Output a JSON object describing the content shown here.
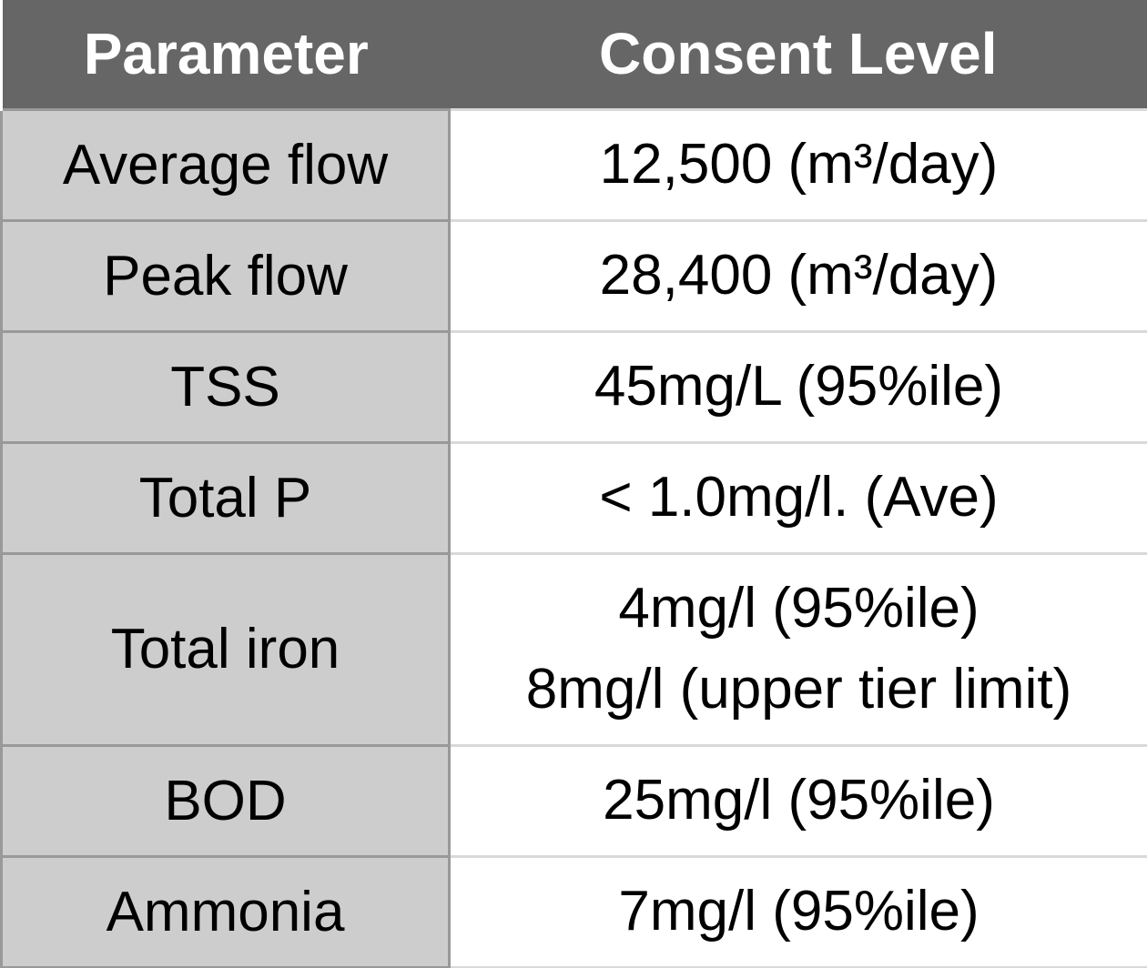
{
  "chart_data": {
    "type": "table",
    "title": "",
    "columns": [
      "Parameter",
      "Consent Level"
    ],
    "rows": [
      [
        "Average flow",
        "12,500 (m³/day)"
      ],
      [
        "Peak flow",
        "28,400 (m³/day)"
      ],
      [
        "TSS",
        "45mg/L (95%ile)"
      ],
      [
        "Total P",
        "< 1.0mg/l. (Ave)"
      ],
      [
        "Total iron",
        "4mg/l (95%ile)\n8mg/l (upper tier limit)"
      ],
      [
        "BOD",
        "25mg/l (95%ile)"
      ],
      [
        "Ammonia",
        "7mg/l (95%ile)"
      ]
    ]
  },
  "colors": {
    "header_bg": "#666666",
    "header_text": "#ffffff",
    "row_label_bg": "#cdcdcd",
    "value_bg": "#ffffff",
    "grid_dark": "#999999",
    "grid_light": "#d9d9d9",
    "text": "#000000"
  }
}
